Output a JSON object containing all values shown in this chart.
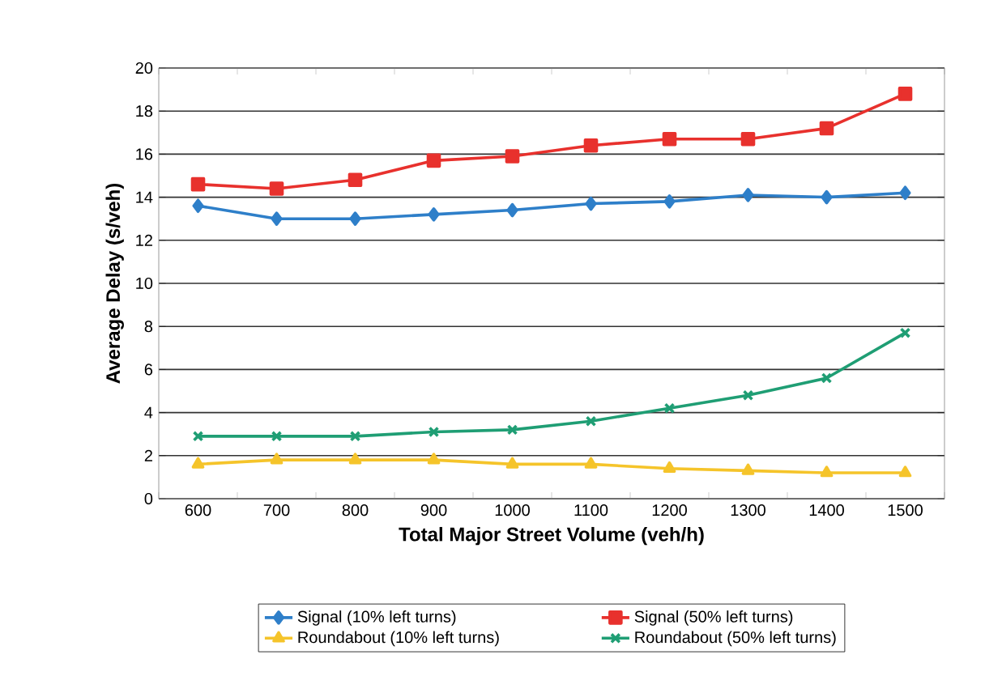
{
  "chart_data": {
    "type": "line",
    "xlabel": "Total Major Street Volume (veh/h)",
    "ylabel": "Average Delay (s/veh)",
    "categories": [
      "600",
      "700",
      "800",
      "900",
      "1000",
      "1100",
      "1200",
      "1300",
      "1400",
      "1500"
    ],
    "ylim": [
      0,
      20
    ],
    "yticks": [
      0,
      2,
      4,
      6,
      8,
      10,
      12,
      14,
      16,
      18,
      20
    ],
    "grid": "y",
    "legend": "bottom",
    "line_style": "solid",
    "series": [
      {
        "name": "Signal (10% left turns)",
        "color": "#2e7fc9",
        "marker": "diamond",
        "values": [
          13.6,
          13.0,
          13.0,
          13.2,
          13.4,
          13.7,
          13.8,
          14.1,
          14.0,
          14.2
        ]
      },
      {
        "name": "Signal (50% left turns)",
        "color": "#e8312d",
        "marker": "square",
        "values": [
          14.6,
          14.4,
          14.8,
          15.7,
          15.9,
          16.4,
          16.7,
          16.7,
          17.2,
          18.8
        ]
      },
      {
        "name": "Roundabout (10% left turns)",
        "color": "#f5c42a",
        "marker": "triangle",
        "values": [
          1.6,
          1.8,
          1.8,
          1.8,
          1.6,
          1.6,
          1.4,
          1.3,
          1.2,
          1.2
        ]
      },
      {
        "name": "Roundabout (50% left turns)",
        "color": "#1f9e74",
        "marker": "cross",
        "values": [
          2.9,
          2.9,
          2.9,
          3.1,
          3.2,
          3.6,
          4.2,
          4.8,
          5.6,
          7.7
        ]
      }
    ]
  }
}
